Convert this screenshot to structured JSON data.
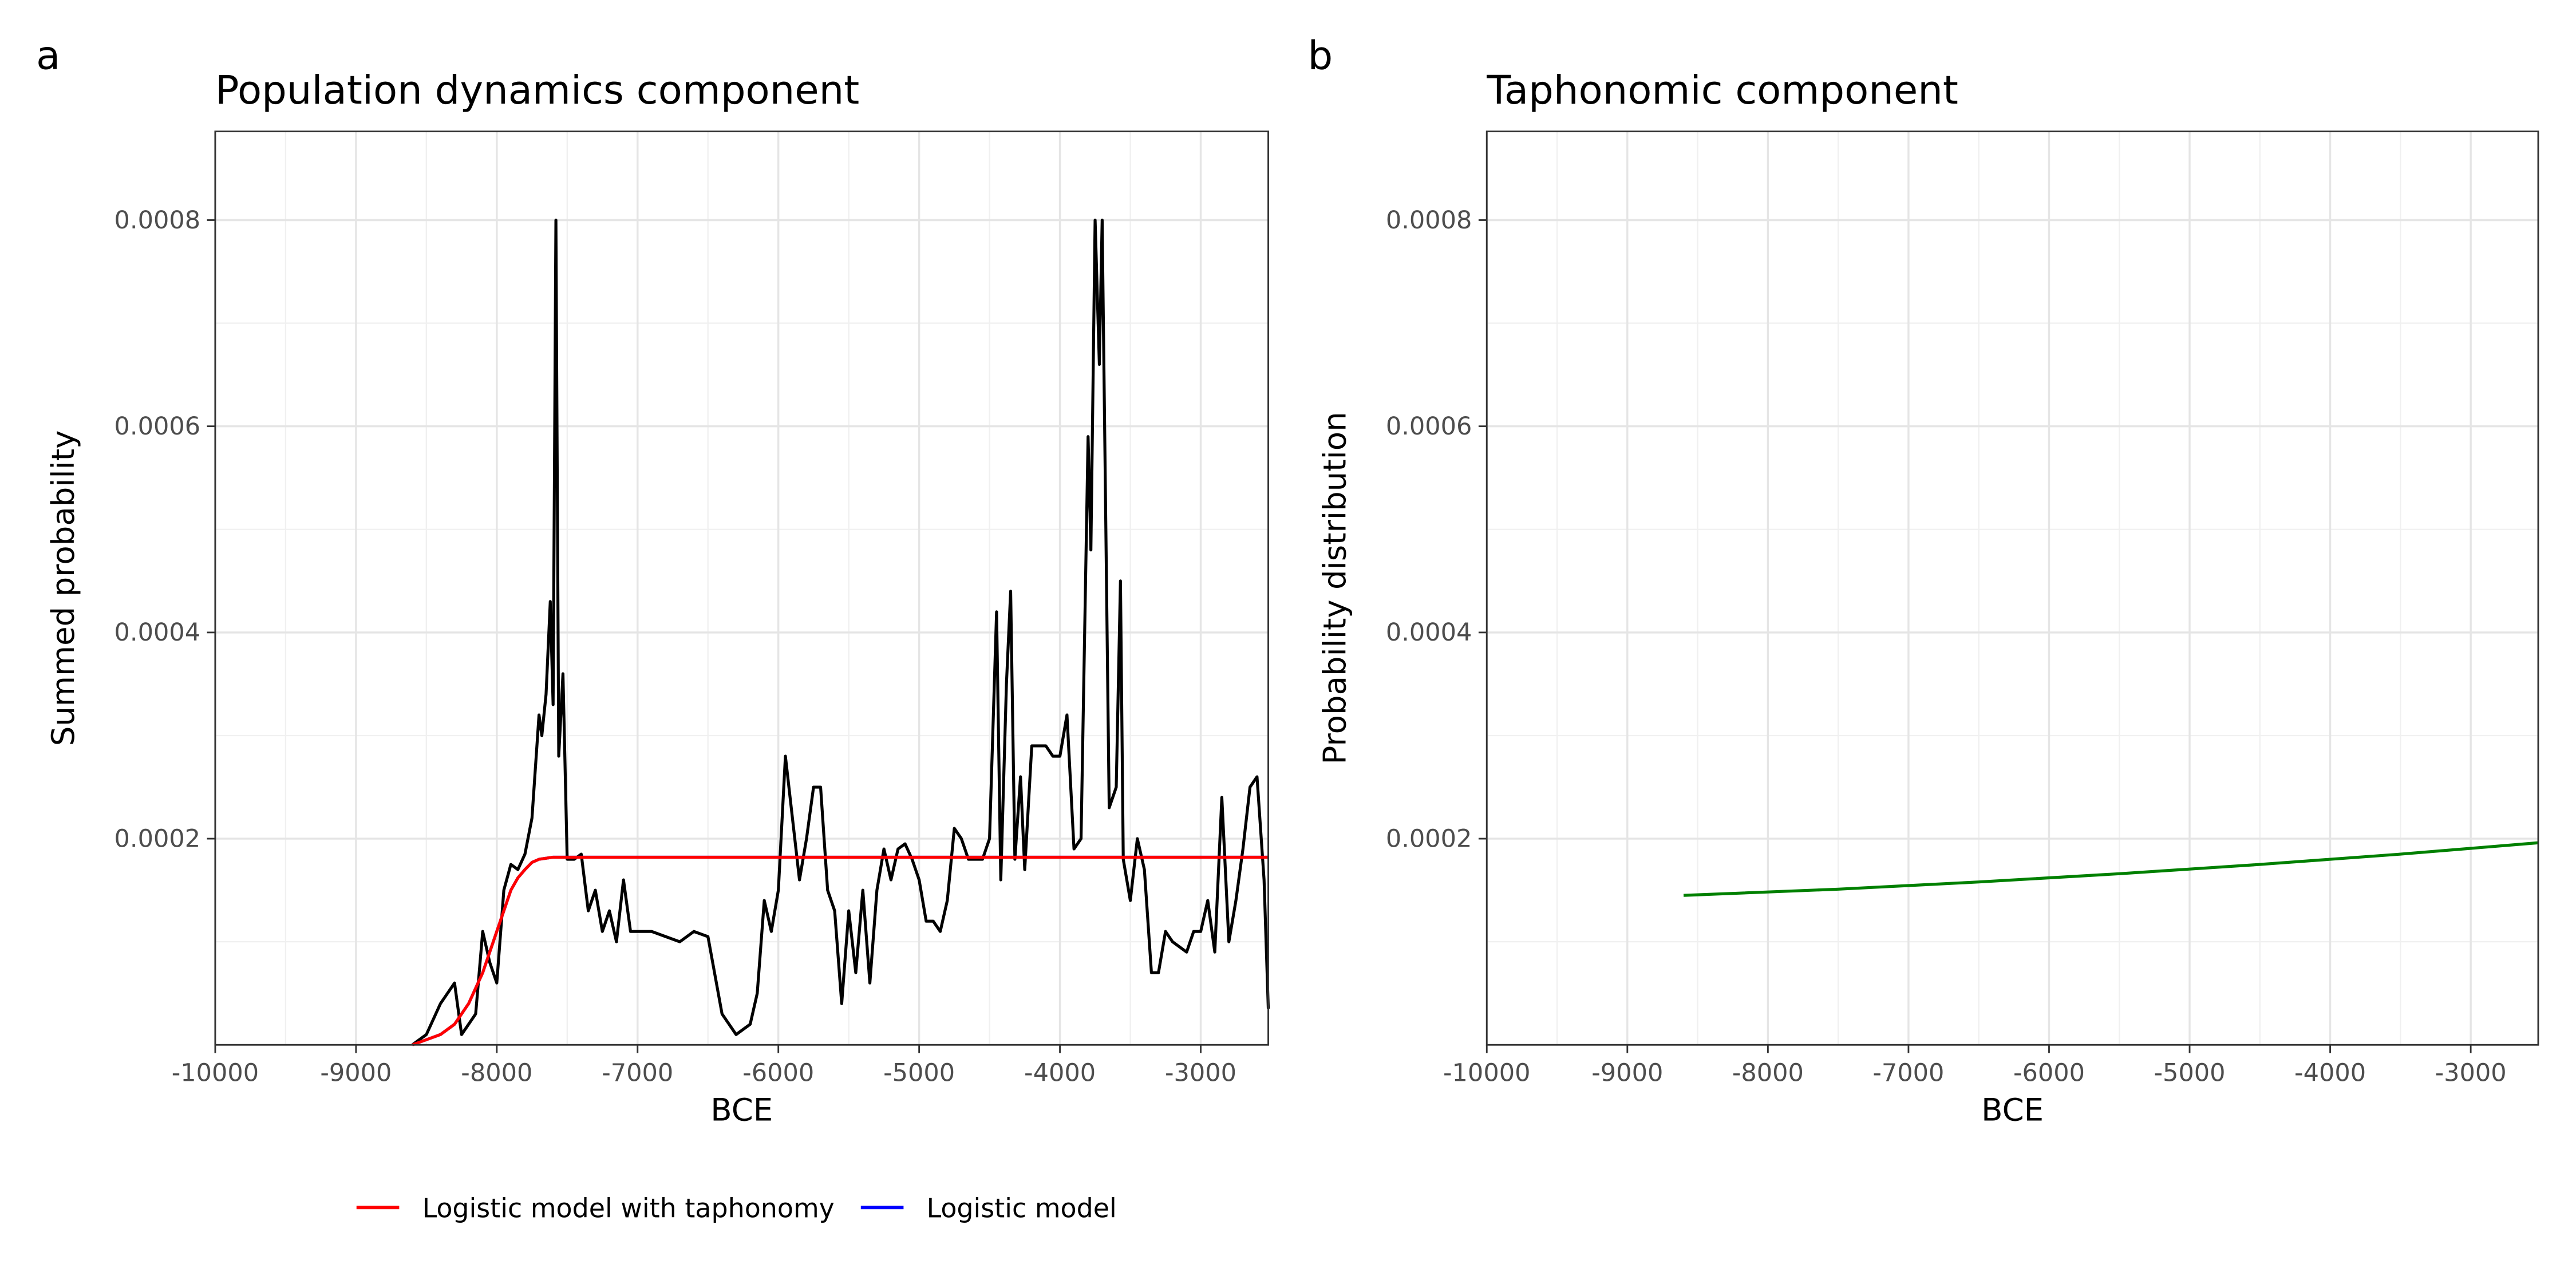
{
  "charts": [
    {
      "type": "line",
      "panel": "a",
      "title": "Population dynamics component",
      "xlabel": "BCE",
      "ylabel": "Summed probability",
      "xlim": [
        -10000,
        -2520
      ],
      "ylim": [
        0,
        0.000886
      ],
      "xticks": [
        -10000,
        -9000,
        -8000,
        -7000,
        -6000,
        -5000,
        -4000,
        -3000
      ],
      "yticks": [
        0.0002,
        0.0004,
        0.0006,
        0.0008
      ],
      "grid": true,
      "minor_grid": true,
      "legend": "bottom",
      "series": [
        {
          "color": "#000000",
          "x": [
            -8600,
            -8500,
            -8400,
            -8300,
            -8250,
            -8150,
            -8100,
            -8050,
            -8000,
            -7950,
            -7900,
            -7850,
            -7800,
            -7750,
            -7700,
            -7680,
            -7650,
            -7620,
            -7600,
            -7580,
            -7560,
            -7530,
            -7500,
            -7450,
            -7400,
            -7350,
            -7300,
            -7250,
            -7200,
            -7150,
            -7100,
            -7050,
            -7000,
            -6900,
            -6800,
            -6700,
            -6600,
            -6500,
            -6400,
            -6300,
            -6200,
            -6150,
            -6100,
            -6050,
            -6000,
            -5950,
            -5900,
            -5850,
            -5800,
            -5750,
            -5700,
            -5650,
            -5600,
            -5550,
            -5500,
            -5450,
            -5400,
            -5350,
            -5300,
            -5250,
            -5200,
            -5150,
            -5100,
            -5050,
            -5000,
            -4950,
            -4900,
            -4850,
            -4800,
            -4750,
            -4700,
            -4650,
            -4600,
            -4550,
            -4500,
            -4450,
            -4420,
            -4380,
            -4350,
            -4320,
            -4280,
            -4250,
            -4200,
            -4150,
            -4100,
            -4050,
            -4000,
            -3950,
            -3900,
            -3850,
            -3800,
            -3780,
            -3750,
            -3720,
            -3700,
            -3650,
            -3600,
            -3570,
            -3550,
            -3500,
            -3450,
            -3400,
            -3350,
            -3300,
            -3250,
            -3200,
            -3100,
            -3050,
            -3000,
            -2950,
            -2900,
            -2850,
            -2800,
            -2750,
            -2700,
            -2650,
            -2600,
            -2550,
            -2520
          ],
          "values": [
            0,
            1e-05,
            4e-05,
            6e-05,
            1e-05,
            3e-05,
            0.00011,
            8e-05,
            6e-05,
            0.00015,
            0.000175,
            0.00017,
            0.000185,
            0.00022,
            0.00032,
            0.0003,
            0.00034,
            0.00043,
            0.00033,
            0.0008,
            0.00028,
            0.00036,
            0.00018,
            0.00018,
            0.000185,
            0.00013,
            0.00015,
            0.00011,
            0.00013,
            0.0001,
            0.00016,
            0.00011,
            0.00011,
            0.00011,
            0.000105,
            0.0001,
            0.00011,
            0.000105,
            3e-05,
            1e-05,
            2e-05,
            5e-05,
            0.00014,
            0.00011,
            0.00015,
            0.00028,
            0.00022,
            0.00016,
            0.0002,
            0.00025,
            0.00025,
            0.00015,
            0.00013,
            4e-05,
            0.00013,
            7e-05,
            0.00015,
            6e-05,
            0.00015,
            0.00019,
            0.00016,
            0.00019,
            0.000195,
            0.00018,
            0.00016,
            0.00012,
            0.00012,
            0.00011,
            0.00014,
            0.00021,
            0.0002,
            0.00018,
            0.00018,
            0.00018,
            0.0002,
            0.00042,
            0.00016,
            0.00035,
            0.00044,
            0.00018,
            0.00026,
            0.00017,
            0.00029,
            0.00029,
            0.00029,
            0.00028,
            0.00028,
            0.00032,
            0.00019,
            0.0002,
            0.00059,
            0.00048,
            0.0008,
            0.00066,
            0.0008,
            0.00023,
            0.00025,
            0.00045,
            0.00018,
            0.00014,
            0.0002,
            0.00017,
            7e-05,
            7e-05,
            0.00011,
            0.0001,
            9e-05,
            0.00011,
            0.00011,
            0.00014,
            9e-05,
            0.00024,
            0.0001,
            0.00014,
            0.00019,
            0.00025,
            0.00026,
            0.00016,
            3.5e-05
          ]
        },
        {
          "name": "Logistic model",
          "color": "#0000ff",
          "x": [
            -8600,
            -8500,
            -8400,
            -8300,
            -8200,
            -8100,
            -8000,
            -7950,
            -7900,
            -7850,
            -7800,
            -7750,
            -7700,
            -7600,
            -2520
          ],
          "values": [
            0,
            5e-06,
            1e-05,
            2e-05,
            4e-05,
            7e-05,
            0.00011,
            0.00013,
            0.00015,
            0.000162,
            0.00017,
            0.000177,
            0.00018,
            0.000182,
            0.000182
          ]
        },
        {
          "name": "Logistic model with taphonomy",
          "color": "#ff0000",
          "x": [
            -8600,
            -8500,
            -8400,
            -8300,
            -8200,
            -8100,
            -8000,
            -7950,
            -7900,
            -7850,
            -7800,
            -7750,
            -7700,
            -7600,
            -2520
          ],
          "values": [
            0,
            5e-06,
            1e-05,
            2e-05,
            4e-05,
            7e-05,
            0.00011,
            0.00013,
            0.00015,
            0.000162,
            0.00017,
            0.000177,
            0.00018,
            0.000182,
            0.000182
          ]
        }
      ]
    },
    {
      "type": "line",
      "panel": "b",
      "title": "Taphonomic component",
      "xlabel": "BCE",
      "ylabel": "Probability distribution",
      "xlim": [
        -10000,
        -2520
      ],
      "ylim": [
        0,
        0.000886
      ],
      "xticks": [
        -10000,
        -9000,
        -8000,
        -7000,
        -6000,
        -5000,
        -4000,
        -3000
      ],
      "yticks": [
        0.0002,
        0.0004,
        0.0006,
        0.0008
      ],
      "grid": true,
      "minor_grid": true,
      "series": [
        {
          "color": "#008000",
          "x": [
            -8600,
            -7500,
            -6500,
            -5500,
            -4500,
            -3500,
            -2520
          ],
          "values": [
            0.000145,
            0.000151,
            0.000158,
            0.000166,
            0.000175,
            0.000185,
            0.000196
          ]
        }
      ]
    }
  ]
}
